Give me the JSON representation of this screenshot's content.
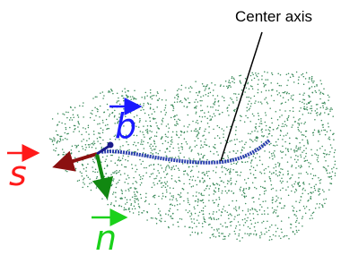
{
  "annotation": "Center axis",
  "labels": {
    "b": "b",
    "s": "s",
    "n": "n"
  }
}
